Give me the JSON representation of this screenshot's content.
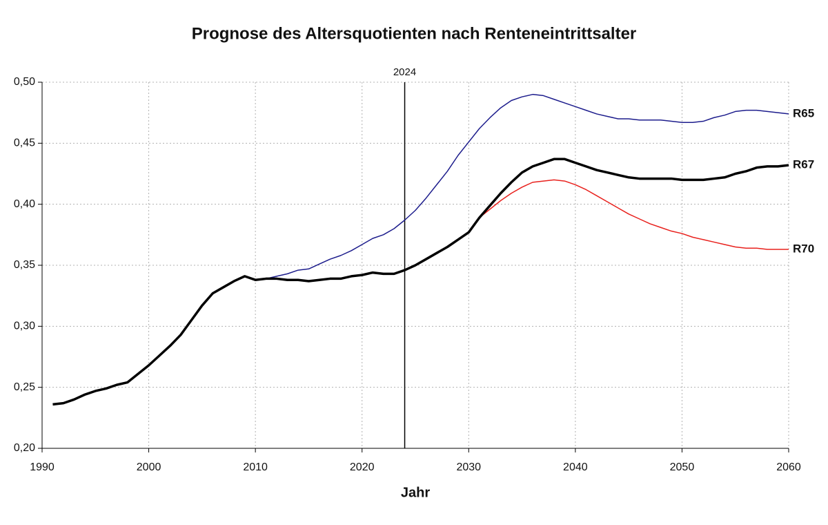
{
  "chart_data": {
    "type": "line",
    "title": "Prognose des Altersquotienten nach Renteneintrittsalter",
    "x_label": "Jahr",
    "vline": 2024,
    "x": [
      1991,
      1992,
      1993,
      1994,
      1995,
      1996,
      1997,
      1998,
      1999,
      2000,
      2001,
      2002,
      2003,
      2004,
      2005,
      2006,
      2007,
      2008,
      2009,
      2010,
      2011,
      2012,
      2013,
      2014,
      2015,
      2016,
      2017,
      2018,
      2019,
      2020,
      2021,
      2022,
      2023,
      2024,
      2025,
      2026,
      2027,
      2028,
      2029,
      2030,
      2031,
      2032,
      2033,
      2034,
      2035,
      2036,
      2037,
      2038,
      2039,
      2040,
      2041,
      2042,
      2043,
      2044,
      2045,
      2046,
      2047,
      2048,
      2049,
      2050,
      2051,
      2052,
      2053,
      2054,
      2055,
      2056,
      2057,
      2058,
      2059,
      2060
    ],
    "series": [
      {
        "name": "R65",
        "color": "#1c1c8c",
        "width": 1.5,
        "values": [
          null,
          null,
          null,
          null,
          null,
          null,
          null,
          null,
          null,
          null,
          null,
          null,
          null,
          null,
          null,
          null,
          null,
          null,
          null,
          0.338,
          0.339,
          0.341,
          0.343,
          0.346,
          0.347,
          0.351,
          0.355,
          0.358,
          0.362,
          0.367,
          0.372,
          0.375,
          0.38,
          0.387,
          0.395,
          0.405,
          0.416,
          0.427,
          0.44,
          0.451,
          0.462,
          0.471,
          0.479,
          0.485,
          0.488,
          0.49,
          0.489,
          0.486,
          0.483,
          0.48,
          0.477,
          0.474,
          0.472,
          0.47,
          0.47,
          0.469,
          0.469,
          0.469,
          0.468,
          0.467,
          0.467,
          0.468,
          0.471,
          0.473,
          0.476,
          0.477,
          0.477,
          0.476,
          0.475,
          0.474
        ]
      },
      {
        "name": "R70",
        "color": "#e8201c",
        "width": 1.5,
        "values": [
          null,
          null,
          null,
          null,
          null,
          null,
          null,
          null,
          null,
          null,
          null,
          null,
          null,
          null,
          null,
          null,
          null,
          null,
          null,
          null,
          null,
          null,
          null,
          null,
          null,
          null,
          null,
          null,
          null,
          null,
          null,
          null,
          null,
          null,
          null,
          null,
          null,
          null,
          null,
          0.377,
          0.389,
          0.396,
          0.403,
          0.409,
          0.414,
          0.418,
          0.419,
          0.42,
          0.419,
          0.416,
          0.412,
          0.407,
          0.402,
          0.397,
          0.392,
          0.388,
          0.384,
          0.381,
          0.378,
          0.376,
          0.373,
          0.371,
          0.369,
          0.367,
          0.365,
          0.364,
          0.364,
          0.363,
          0.363,
          0.363
        ]
      },
      {
        "name": "R67",
        "color": "#000000",
        "width": 3.5,
        "values": [
          0.236,
          0.237,
          0.24,
          0.244,
          0.247,
          0.249,
          0.252,
          0.254,
          0.261,
          0.268,
          0.276,
          0.284,
          0.293,
          0.305,
          0.317,
          0.327,
          0.332,
          0.337,
          0.341,
          0.338,
          0.339,
          0.339,
          0.338,
          0.338,
          0.337,
          0.338,
          0.339,
          0.339,
          0.341,
          0.342,
          0.344,
          0.343,
          0.343,
          0.346,
          0.35,
          0.355,
          0.36,
          0.365,
          0.371,
          0.377,
          0.389,
          0.399,
          0.409,
          0.418,
          0.426,
          0.431,
          0.434,
          0.437,
          0.437,
          0.434,
          0.431,
          0.428,
          0.426,
          0.424,
          0.422,
          0.421,
          0.421,
          0.421,
          0.421,
          0.42,
          0.42,
          0.42,
          0.421,
          0.422,
          0.425,
          0.427,
          0.43,
          0.431,
          0.431,
          0.432
        ]
      }
    ],
    "xlim": [
      1990,
      2060
    ],
    "xticks": [
      1990,
      2000,
      2010,
      2020,
      2030,
      2040,
      2050,
      2060
    ],
    "ylim": [
      0.2,
      0.5
    ],
    "yticks": [
      {
        "value": 0.2,
        "label": "0,20"
      },
      {
        "value": 0.25,
        "label": "0,25"
      },
      {
        "value": 0.3,
        "label": "0,30"
      },
      {
        "value": 0.35,
        "label": "0,35"
      },
      {
        "value": 0.4,
        "label": "0,40"
      },
      {
        "value": 0.45,
        "label": "0,45"
      },
      {
        "value": 0.5,
        "label": "0,50"
      }
    ],
    "grid": true
  }
}
